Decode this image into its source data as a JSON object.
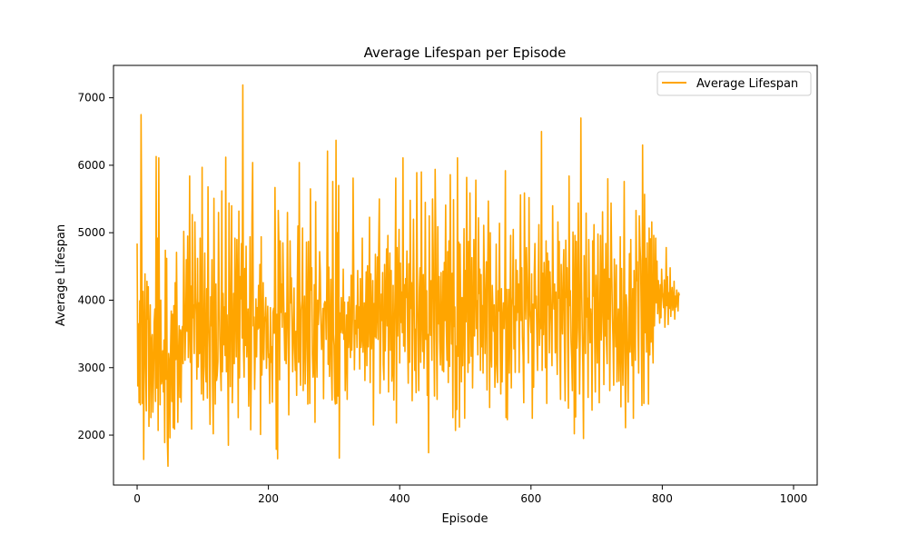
{
  "chart_data": {
    "type": "line",
    "title": "Average Lifespan per Episode",
    "xlabel": "Episode",
    "ylabel": "Average Lifespan",
    "xlim": [
      -36,
      1036
    ],
    "ylim": [
      1260,
      7480
    ],
    "x_ticks": [
      0,
      200,
      400,
      600,
      800,
      1000
    ],
    "y_ticks": [
      2000,
      3000,
      4000,
      5000,
      6000,
      7000
    ],
    "x_tick_labels": [
      "0",
      "200",
      "400",
      "600",
      "800",
      "1000"
    ],
    "y_tick_labels": [
      "2000",
      "3000",
      "4000",
      "5000",
      "6000",
      "7000"
    ],
    "grid": false,
    "legend": {
      "position": "top-right",
      "entries": [
        "Average Lifespan"
      ]
    },
    "series": [
      {
        "name": "Average Lifespan",
        "color": "#ffa500",
        "x_start": 0,
        "x_step": 1,
        "values": [
          4840,
          2730,
          3650,
          2480,
          3990,
          2450,
          6750,
          4920,
          2470,
          4130,
          1640,
          3540,
          4390,
          3000,
          2360,
          4280,
          3720,
          4200,
          2130,
          3450,
          3930,
          2260,
          3380,
          3490,
          2340,
          2870,
          3680,
          3870,
          2500,
          6130,
          2700,
          4920,
          2070,
          6110,
          3590,
          2450,
          4000,
          2760,
          2830,
          3250,
          2640,
          3410,
          1890,
          4740,
          2830,
          4620,
          1960,
          1540,
          3210,
          3080,
          1960,
          3310,
          3840,
          2500,
          3790,
          2110,
          3920,
          2090,
          4260,
          3120,
          4710,
          3430,
          2190,
          3180,
          3620,
          2560,
          3560,
          2490,
          3500,
          3610,
          3060,
          5020,
          3980,
          3110,
          3640,
          4600,
          3540,
          4950,
          3150,
          3530,
          5840,
          3080,
          4210,
          2090,
          5270,
          3740,
          3930,
          3210,
          5160,
          4040,
          3780,
          2830,
          4620,
          3010,
          3960,
          3210,
          4920,
          3420,
          2610,
          5970,
          3260,
          2520,
          3900,
          4700,
          3010,
          2790,
          4170,
          2550,
          5680,
          3770,
          3300,
          2160,
          4050,
          3620,
          4600,
          2730,
          2020,
          5510,
          3650,
          2460,
          4240,
          2810,
          2890,
          3090,
          5300,
          4050,
          3440,
          2990,
          2660,
          5620,
          2940,
          4100,
          3340,
          3900,
          3180,
          6120,
          2940,
          3780,
          3120,
          1850,
          5440,
          3820,
          2720,
          4210,
          5400,
          2480,
          3170,
          4100,
          3060,
          4920,
          3890,
          3160,
          4900,
          4120,
          2260,
          5320,
          2850,
          4350,
          4020,
          4840,
          3440,
          7190,
          3290,
          2860,
          4470,
          3330,
          4800,
          3160,
          3600,
          3870,
          2430,
          3190,
          4940,
          2080,
          3080,
          5220,
          6040,
          3620,
          3750,
          2680,
          3290,
          4020,
          3160,
          3890,
          3570,
          4220,
          3590,
          4530,
          2010,
          4940,
          2890,
          3380,
          4260,
          3120,
          3680,
          3770,
          4040,
          2990,
          3510,
          3910,
          3150,
          3200,
          2470,
          3890,
          3080,
          3310,
          2490,
          3820,
          3880,
          3510,
          5670,
          4040,
          1790,
          3790,
          1650,
          5330,
          4820,
          2820,
          4880,
          3820,
          4240,
          3600,
          4850,
          4190,
          3590,
          3110,
          3810,
          3060,
          3690,
          5300,
          3680,
          2300,
          3600,
          4880,
          3960,
          4330,
          3610,
          2940,
          3560,
          4180,
          3280,
          2960,
          3540,
          2590,
          4220,
          5100,
          3080,
          6040,
          3250,
          2740,
          3850,
          3990,
          5070,
          2660,
          3590,
          4060,
          2760,
          3300,
          4860,
          3780,
          2460,
          4870,
          3670,
          2470,
          5650,
          4150,
          4480,
          3200,
          2860,
          3010,
          4230,
          2190,
          5460,
          3370,
          2860,
          4000,
          3640,
          3860,
          4720,
          4410,
          3660,
          3270,
          3510,
          3880,
          2540,
          3940,
          3980,
          3960,
          3420,
          4310,
          6210,
          3050,
          4490,
          2870,
          3410,
          4310,
          2980,
          2520,
          5760,
          3500,
          3330,
          2560,
          2460,
          6370,
          2470,
          5000,
          2580,
          5700,
          1660,
          3810,
          3520,
          4040,
          3590,
          3510,
          4460,
          3420,
          3970,
          2660,
          3210,
          3780,
          2530,
          3970,
          3300,
          4050,
          3510,
          3150,
          4370,
          3260,
          3700,
          5810,
          4410,
          2970,
          3700,
          3500,
          3920,
          3300,
          4440,
          3590,
          3900,
          2980,
          4320,
          3300,
          3440,
          4920,
          3230,
          3530,
          3960,
          2810,
          3760,
          4420,
          3030,
          4510,
          3310,
          3730,
          5230,
          2780,
          4390,
          3280,
          3710,
          4290,
          2150,
          3950,
          3460,
          4680,
          3440,
          3850,
          4640,
          3420,
          4770,
          5500,
          2620,
          3330,
          4090,
          3700,
          4410,
          3050,
          2820,
          4530,
          3250,
          3940,
          4760,
          3620,
          4960,
          2640,
          4120,
          4700,
          3260,
          4440,
          2800,
          2940,
          4220,
          2520,
          3500,
          4160,
          5810,
          2180,
          4780,
          3470,
          4190,
          5050,
          3070,
          4550,
          3670,
          4120,
          3520,
          6110,
          3320,
          4230,
          3240,
          4320,
          4040,
          4730,
          3550,
          2770,
          4540,
          3080,
          5480,
          3880,
          4260,
          2510,
          3880,
          5200,
          3950,
          2960,
          3570,
          2630,
          5890,
          4170,
          3460,
          2660,
          4180,
          4480,
          3080,
          5900,
          3760,
          3240,
          4380,
          2990,
          3550,
          5450,
          3420,
          4140,
          2590,
          3490,
          1740,
          5250,
          3920,
          3480,
          4290,
          3110,
          5500,
          4730,
          3550,
          2580,
          5940,
          4930,
          3440,
          2530,
          5090,
          3650,
          4350,
          3390,
          3040,
          4410,
          3470,
          2960,
          4430,
          2940,
          4560,
          3700,
          5410,
          3620,
          3110,
          4720,
          2780,
          4880,
          3020,
          5860,
          3970,
          3350,
          4400,
          2260,
          5490,
          3610,
          3900,
          2070,
          3320,
          2380,
          6110,
          3170,
          4860,
          2120,
          4830,
          3830,
          2790,
          4040,
          3030,
          3800,
          5060,
          2250,
          4440,
          3680,
          5820,
          4180,
          2930,
          4870,
          3070,
          5590,
          3750,
          3170,
          4630,
          2700,
          3660,
          4900,
          3470,
          4170,
          5780,
          3580,
          3990,
          3190,
          5220,
          4100,
          4460,
          2960,
          4380,
          3310,
          3920,
          2920,
          5110,
          4250,
          3210,
          3970,
          4570,
          2670,
          4310,
          5470,
          4440,
          2410,
          5000,
          3230,
          3010,
          4220,
          3890,
          3540,
          3930,
          2710,
          3140,
          4830,
          3060,
          2780,
          4140,
          3840,
          5140,
          3420,
          2610,
          4170,
          2790,
          3690,
          3960,
          3580,
          3980,
          5920,
          2260,
          4160,
          2230,
          3720,
          4160,
          2920,
          3710,
          4960,
          2700,
          3890,
          4050,
          5050,
          3280,
          3910,
          2930,
          4600,
          3700,
          4440,
          3820,
          4240,
          2930,
          4160,
          5560,
          3700,
          4480,
          3450,
          3170,
          2480,
          5590,
          4130,
          3720,
          4780,
          4330,
          3740,
          3070,
          5520,
          3840,
          3720,
          3520,
          4390,
          2250,
          3940,
          2710,
          4400,
          4840,
          3880,
          4060,
          3450,
          2960,
          4200,
          5120,
          3330,
          3720,
          3580,
          6500,
          2960,
          4400,
          3490,
          4560,
          4090,
          3000,
          4880,
          2470,
          4700,
          3930,
          4580,
          3220,
          4420,
          4000,
          3610,
          3030,
          5400,
          4140,
          3870,
          4240,
          3220,
          4120,
          3480,
          2900,
          5160,
          4030,
          4870,
          3220,
          2530,
          4530,
          3830,
          3500,
          4370,
          4750,
          3340,
          2510,
          4890,
          4040,
          4480,
          3290,
          2400,
          5840,
          3920,
          4140,
          3390,
          3140,
          2660,
          5010,
          4030,
          2020,
          4960,
          2270,
          4870,
          3290,
          3600,
          5440,
          4250,
          2610,
          3490,
          6700,
          4290,
          3650,
          3020,
          1950,
          4660,
          3910,
          3210,
          5290,
          3750,
          4030,
          2560,
          4900,
          4090,
          3370,
          3870,
          3650,
          2370,
          4880,
          4060,
          5120,
          3470,
          2640,
          4370,
          3750,
          3070,
          4980,
          3660,
          2480,
          3940,
          4960,
          3410,
          3770,
          5310,
          4150,
          2750,
          4460,
          3470,
          4840,
          3370,
          3060,
          5800,
          3720,
          4320,
          2660,
          3990,
          5440,
          4420,
          3780,
          3380,
          2740,
          4610,
          3920,
          3310,
          4520,
          2790,
          3480,
          3870,
          2800,
          3320,
          4940,
          2420,
          4470,
          3460,
          2740,
          3590,
          5760,
          3210,
          2110,
          4080,
          3890,
          3040,
          2490,
          3550,
          4690,
          3230,
          4900,
          3490,
          3030,
          4170,
          2250,
          4440,
          3840,
          3110,
          5330,
          4290,
          4570,
          3560,
          2920,
          5250,
          4810,
          4590,
          3700,
          2440,
          6300,
          4050,
          2470,
          5570,
          3520,
          4620,
          3230,
          4850,
          3940,
          2460,
          5070,
          3190,
          4910,
          3380,
          5160,
          3550,
          3070,
          4960,
          3620,
          4120,
          4920,
          3960,
          4580,
          3800,
          4290,
          4070,
          3660,
          4230,
          3740,
          4460,
          4120,
          4010,
          3890,
          4300,
          3600,
          3950,
          4780,
          3920,
          4350,
          3640,
          4110,
          3880,
          4480,
          3760,
          4040,
          4190,
          3850,
          3950,
          4280,
          3720,
          4060,
          3900,
          4150,
          4020,
          3840,
          4110,
          4070
        ]
      }
    ]
  }
}
